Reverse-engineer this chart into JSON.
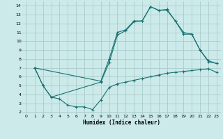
{
  "xlabel": "Humidex (Indice chaleur)",
  "bg_color": "#cceaea",
  "grid_color": "#aacccc",
  "line_color": "#1a7070",
  "xlim": [
    -0.5,
    23.5
  ],
  "ylim": [
    1.8,
    14.5
  ],
  "xticks": [
    0,
    1,
    2,
    3,
    4,
    5,
    6,
    7,
    8,
    9,
    10,
    11,
    12,
    13,
    14,
    15,
    16,
    17,
    18,
    19,
    20,
    21,
    22,
    23
  ],
  "yticks": [
    2,
    3,
    4,
    5,
    6,
    7,
    8,
    9,
    10,
    11,
    12,
    13,
    14
  ],
  "line1_x": [
    1,
    2,
    3,
    4,
    5,
    6,
    7,
    8,
    9,
    10,
    11,
    12,
    13,
    14,
    15,
    16,
    17,
    18,
    19,
    20,
    21,
    22,
    23
  ],
  "line1_y": [
    7,
    5,
    3.7,
    3.5,
    2.8,
    2.6,
    2.6,
    2.3,
    3.4,
    4.8,
    5.2,
    5.4,
    5.6,
    5.8,
    6.0,
    6.2,
    6.4,
    6.5,
    6.6,
    6.7,
    6.8,
    6.9,
    6.5
  ],
  "line2_x": [
    1,
    2,
    3,
    9,
    10,
    11,
    12,
    13,
    14,
    15,
    16,
    17,
    18,
    19,
    20,
    21,
    22,
    23
  ],
  "line2_y": [
    7,
    5,
    3.7,
    5.4,
    7.6,
    10.7,
    11.2,
    12.2,
    12.3,
    13.9,
    13.5,
    13.6,
    12.3,
    11.0,
    10.8,
    9.0,
    7.7,
    7.5
  ],
  "line3_x": [
    1,
    9,
    10,
    11,
    12,
    13,
    14,
    15,
    16,
    17,
    18,
    19,
    20,
    21,
    22,
    23
  ],
  "line3_y": [
    7,
    5.5,
    8.0,
    11.0,
    11.3,
    12.3,
    12.3,
    13.9,
    13.5,
    13.5,
    12.3,
    10.8,
    10.8,
    9.0,
    7.8,
    7.5
  ]
}
